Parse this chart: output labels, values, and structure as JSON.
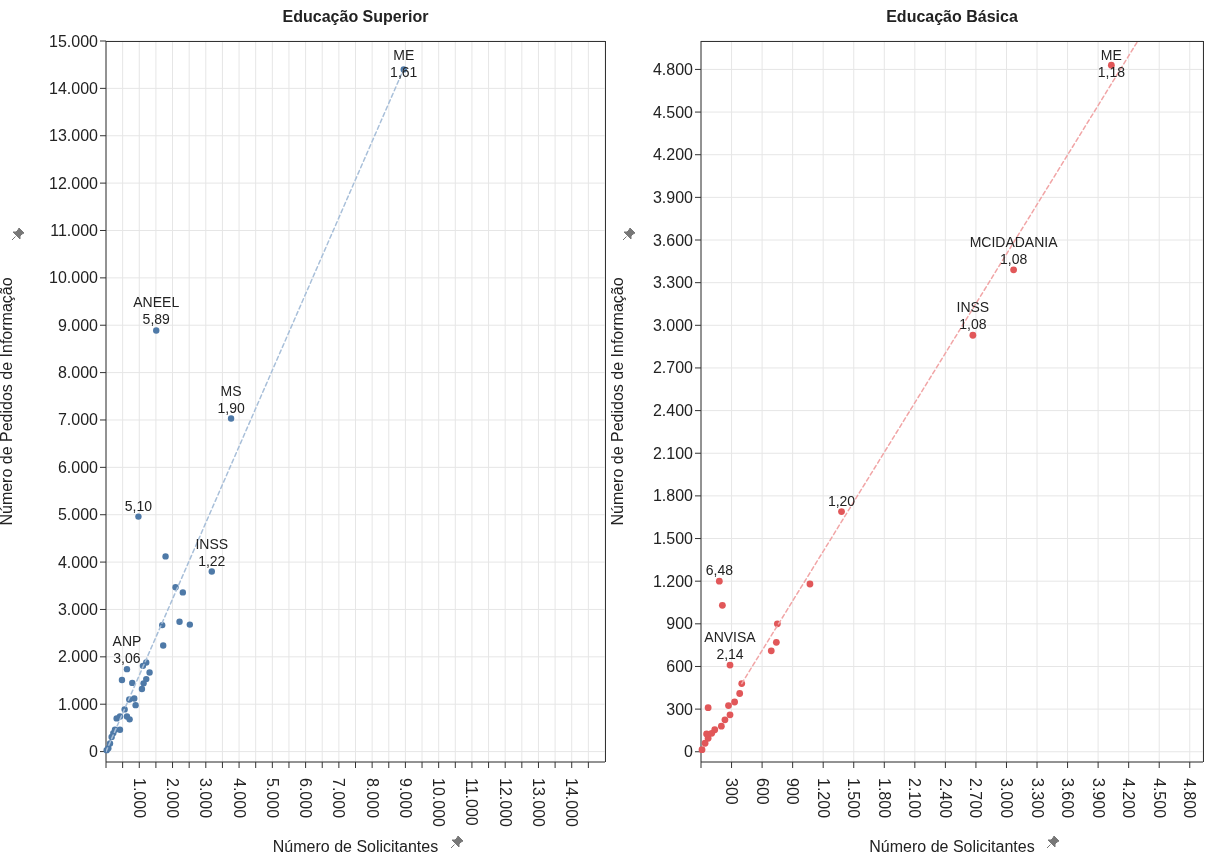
{
  "chart_data": [
    {
      "type": "scatter",
      "title": "Educação Superior",
      "xlabel": "Número de Solicitantes",
      "ylabel": "Número de Pedidos de Informação",
      "marker": "circle",
      "grid": true,
      "xlim": [
        0,
        15000
      ],
      "ylim": [
        -220,
        15000
      ],
      "xticks": [
        {
          "value": 0,
          "label": null
        },
        {
          "value": 500,
          "label": null
        },
        {
          "value": 1000,
          "label": "1.000"
        },
        {
          "value": 1500,
          "label": null
        },
        {
          "value": 2000,
          "label": "2.000"
        },
        {
          "value": 2500,
          "label": null
        },
        {
          "value": 3000,
          "label": "3.000"
        },
        {
          "value": 3500,
          "label": null
        },
        {
          "value": 4000,
          "label": "4.000"
        },
        {
          "value": 4500,
          "label": null
        },
        {
          "value": 5000,
          "label": "5.000"
        },
        {
          "value": 5500,
          "label": null
        },
        {
          "value": 6000,
          "label": "6.000"
        },
        {
          "value": 6500,
          "label": null
        },
        {
          "value": 7000,
          "label": "7.000"
        },
        {
          "value": 7500,
          "label": null
        },
        {
          "value": 8000,
          "label": "8.000"
        },
        {
          "value": 8500,
          "label": null
        },
        {
          "value": 9000,
          "label": "9.000"
        },
        {
          "value": 9500,
          "label": null
        },
        {
          "value": 10000,
          "label": "10.000"
        },
        {
          "value": 10500,
          "label": null
        },
        {
          "value": 11000,
          "label": "11.000"
        },
        {
          "value": 11500,
          "label": null
        },
        {
          "value": 12000,
          "label": "12.000"
        },
        {
          "value": 12500,
          "label": null
        },
        {
          "value": 13000,
          "label": "13.000"
        },
        {
          "value": 13500,
          "label": null
        },
        {
          "value": 14000,
          "label": "14.000"
        },
        {
          "value": 14500,
          "label": null
        }
      ],
      "yticks": [
        0,
        {
          "value": 1000,
          "label": "1.000"
        },
        {
          "value": 2000,
          "label": "2.000"
        },
        {
          "value": 3000,
          "label": "3.000"
        },
        {
          "value": 4000,
          "label": "4.000"
        },
        {
          "value": 5000,
          "label": "5.000"
        },
        {
          "value": 6000,
          "label": "6.000"
        },
        {
          "value": 7000,
          "label": "7.000"
        },
        {
          "value": 8000,
          "label": "8.000"
        },
        {
          "value": 9000,
          "label": "9.000"
        },
        {
          "value": 10000,
          "label": "10.000"
        },
        {
          "value": 11000,
          "label": "11.000"
        },
        {
          "value": 12000,
          "label": "12.000"
        },
        {
          "value": 13000,
          "label": "13.000"
        },
        {
          "value": 14000,
          "label": "14.000"
        },
        {
          "value": 15000,
          "label": "15.000"
        }
      ],
      "series": [
        {
          "type": "scatter",
          "color": "#4e79a7",
          "x": [
            8950,
            1510,
            3760,
            975,
            3180,
            1790,
            2090,
            2310,
            1690,
            2210,
            2520,
            1720,
            630,
            480,
            790,
            1110,
            1210,
            1310,
            1210,
            1130,
            1080,
            700,
            850,
            890,
            560,
            630,
            420,
            320,
            710,
            270,
            420,
            170,
            120,
            20,
            70,
            220
          ],
          "values": [
            14400,
            8890,
            7030,
            4960,
            3800,
            4120,
            3470,
            3360,
            2670,
            2740,
            2680,
            2240,
            1740,
            1510,
            1450,
            1810,
            1880,
            1670,
            1530,
            1440,
            1320,
            1100,
            1120,
            980,
            890,
            740,
            740,
            700,
            680,
            460,
            460,
            310,
            170,
            30,
            70,
            390
          ]
        },
        {
          "type": "line",
          "color": "#a8bfd9",
          "line_style": "dashed",
          "marker": "none",
          "x": [
            0,
            8950
          ],
          "values": [
            0,
            14410
          ]
        }
      ],
      "annotations": [
        {
          "text": "ME\n1,61",
          "x": 8950,
          "y": 14400
        },
        {
          "text": "ANEEL\n5,89",
          "x": 1510,
          "y": 8890
        },
        {
          "text": "MS\n1,90",
          "x": 3760,
          "y": 7030
        },
        {
          "text": "5,10",
          "x": 975,
          "y": 4960
        },
        {
          "text": "INSS\n1,22",
          "x": 3180,
          "y": 3800
        },
        {
          "text": "ANP\n3,06",
          "x": 630,
          "y": 1740
        }
      ]
    },
    {
      "type": "scatter",
      "title": "Educação Básica",
      "xlabel": "Número de Solicitantes",
      "ylabel": "Número de Pedidos de Informação",
      "marker": "circle",
      "grid": true,
      "xlim": [
        0,
        4930
      ],
      "ylim": [
        -72,
        5000
      ],
      "xticks": [
        {
          "value": 0,
          "label": null
        },
        300,
        600,
        900,
        {
          "value": 1200,
          "label": "1.200"
        },
        {
          "value": 1500,
          "label": "1.500"
        },
        {
          "value": 1800,
          "label": "1.800"
        },
        {
          "value": 2100,
          "label": "2.100"
        },
        {
          "value": 2400,
          "label": "2.400"
        },
        {
          "value": 2700,
          "label": "2.700"
        },
        {
          "value": 3000,
          "label": "3.000"
        },
        {
          "value": 3300,
          "label": "3.300"
        },
        {
          "value": 3600,
          "label": "3.600"
        },
        {
          "value": 3900,
          "label": "3.900"
        },
        {
          "value": 4200,
          "label": "4.200"
        },
        {
          "value": 4500,
          "label": "4.500"
        },
        {
          "value": 4800,
          "label": "4.800"
        }
      ],
      "yticks": [
        0,
        300,
        600,
        900,
        {
          "value": 1200,
          "label": "1.200"
        },
        {
          "value": 1500,
          "label": "1.500"
        },
        {
          "value": 1800,
          "label": "1.800"
        },
        {
          "value": 2100,
          "label": "2.100"
        },
        {
          "value": 2400,
          "label": "2.400"
        },
        {
          "value": 2700,
          "label": "2.700"
        },
        {
          "value": 3000,
          "label": "3.000"
        },
        {
          "value": 3300,
          "label": "3.300"
        },
        {
          "value": 3600,
          "label": "3.600"
        },
        {
          "value": 3900,
          "label": "3.900"
        },
        {
          "value": 4200,
          "label": "4.200"
        },
        {
          "value": 4500,
          "label": "4.500"
        },
        {
          "value": 4800,
          "label": "4.800"
        }
      ],
      "series": [
        {
          "type": "scatter",
          "color": "#e15759",
          "x": [
            4030,
            3070,
            2670,
            1380,
            1070,
            180,
            210,
            750,
            740,
            690,
            285,
            400,
            380,
            70,
            330,
            270,
            285,
            235,
            200,
            135,
            70,
            40,
            10,
            55,
            105
          ],
          "values": [
            4830,
            3390,
            2930,
            1690,
            1180,
            1200,
            1030,
            900,
            770,
            710,
            610,
            480,
            410,
            310,
            350,
            325,
            260,
            225,
            180,
            155,
            95,
            60,
            15,
            125,
            130
          ]
        },
        {
          "type": "line",
          "color": "#f1a5a6",
          "line_style": "dashed",
          "marker": "none",
          "x": [
            400,
            4290
          ],
          "values": [
            480,
            5000
          ]
        }
      ],
      "annotations": [
        {
          "text": "ME\n1,18",
          "x": 4030,
          "y": 4830
        },
        {
          "text": "MCIDADANIA\n1,08",
          "x": 3070,
          "y": 3390
        },
        {
          "text": "INSS\n1,08",
          "x": 2670,
          "y": 2930
        },
        {
          "text": "1,20",
          "x": 1380,
          "y": 1690
        },
        {
          "text": "6,48",
          "x": 180,
          "y": 1200
        },
        {
          "text": "ANVISA\n2,14",
          "x": 285,
          "y": 610
        }
      ]
    }
  ]
}
